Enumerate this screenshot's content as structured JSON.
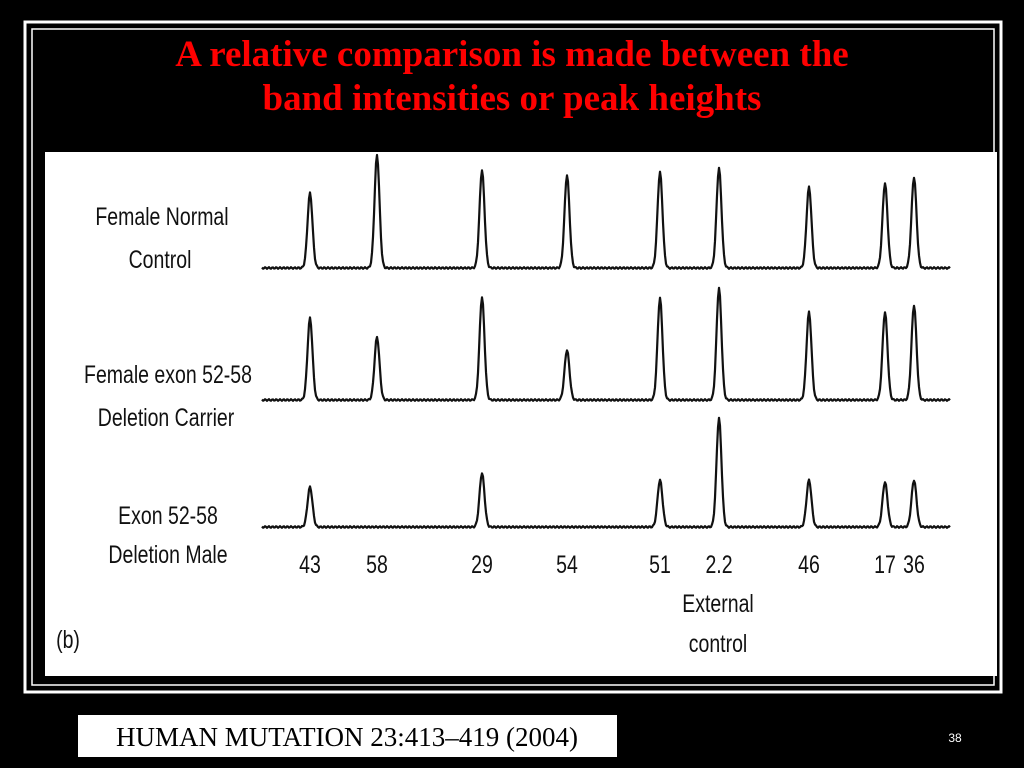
{
  "title": {
    "lines": [
      "A relative comparison is made between the",
      "band intensities or peak heights"
    ]
  },
  "figure": {
    "rows": [
      {
        "label_lines": [
          "Female Normal",
          "Control"
        ]
      },
      {
        "label_lines": [
          "Female exon 52-58",
          "Deletion Carrier"
        ]
      },
      {
        "label_lines": [
          "Exon 52-58",
          "Deletion Male"
        ]
      }
    ],
    "peak_labels": [
      "43",
      "58",
      "29",
      "54",
      "51",
      "2.2",
      "46",
      "17",
      "36"
    ],
    "external_control_lines": [
      "External",
      "control"
    ],
    "panel_label": "(b)"
  },
  "citation": "HUMAN MUTATION 23:413–419 (2004)",
  "slide_number": "38"
}
